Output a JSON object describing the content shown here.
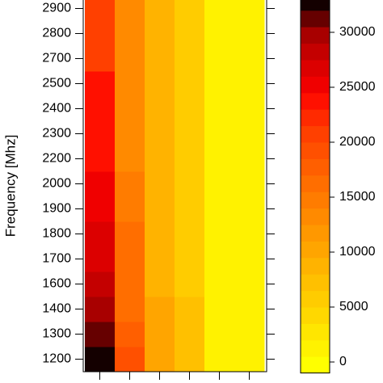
{
  "chart_data": {
    "type": "heatmap",
    "y_label": "Frequency [Mhz]",
    "x_categories": [
      null,
      null,
      null,
      null,
      null,
      null
    ],
    "y_categories": [
      1200,
      1300,
      1400,
      1600,
      1700,
      1800,
      1900,
      2000,
      2200,
      2300,
      2400,
      2500,
      2700,
      2800,
      2900
    ],
    "z": [
      [
        33000,
        19000,
        10500,
        7500,
        1200,
        1200
      ],
      [
        31000,
        17000,
        10000,
        7000,
        1200,
        1200
      ],
      [
        29000,
        16500,
        9500,
        6500,
        1200,
        1200
      ],
      [
        27500,
        15500,
        9000,
        6000,
        1200,
        1200
      ],
      [
        27000,
        15500,
        9000,
        6000,
        1200,
        1200
      ],
      [
        26000,
        15500,
        8500,
        5500,
        1200,
        1200
      ],
      [
        25500,
        14500,
        8500,
        5500,
        1200,
        1200
      ],
      [
        25000,
        14500,
        8500,
        5500,
        1200,
        1200
      ],
      [
        23500,
        13000,
        8000,
        5000,
        1200,
        1200
      ],
      [
        23500,
        13000,
        8000,
        5000,
        1200,
        1200
      ],
      [
        23000,
        13000,
        8000,
        5000,
        1200,
        1200
      ],
      [
        23000,
        13000,
        8000,
        5000,
        1200,
        1200
      ],
      [
        21000,
        13000,
        8000,
        5000,
        1200,
        1200
      ],
      [
        21000,
        13000,
        8000,
        5000,
        1200,
        1200
      ],
      [
        21000,
        13000,
        8000,
        5000,
        1200,
        1200
      ]
    ],
    "colorbar": {
      "breaks": [
        -1000,
        500,
        2000,
        3500,
        5000,
        6500,
        8000,
        9500,
        11000,
        12500,
        14000,
        15500,
        17000,
        18500,
        20000,
        21500,
        23000,
        24500,
        26000,
        27500,
        29000,
        30500,
        32000,
        33500
      ],
      "colors": [
        "#ffff00",
        "#fff200",
        "#ffe600",
        "#ffd800",
        "#ffcc00",
        "#ffc000",
        "#ffb300",
        "#ffa500",
        "#ff9800",
        "#ff8a00",
        "#ff7c00",
        "#ff6e00",
        "#ff5f00",
        "#ff5000",
        "#ff4000",
        "#ff2a00",
        "#ff1000",
        "#f00000",
        "#dc0000",
        "#c40000",
        "#a80000",
        "#660000",
        "#140000"
      ],
      "ticks": [
        0,
        5000,
        10000,
        15000,
        20000,
        25000,
        30000
      ]
    }
  }
}
